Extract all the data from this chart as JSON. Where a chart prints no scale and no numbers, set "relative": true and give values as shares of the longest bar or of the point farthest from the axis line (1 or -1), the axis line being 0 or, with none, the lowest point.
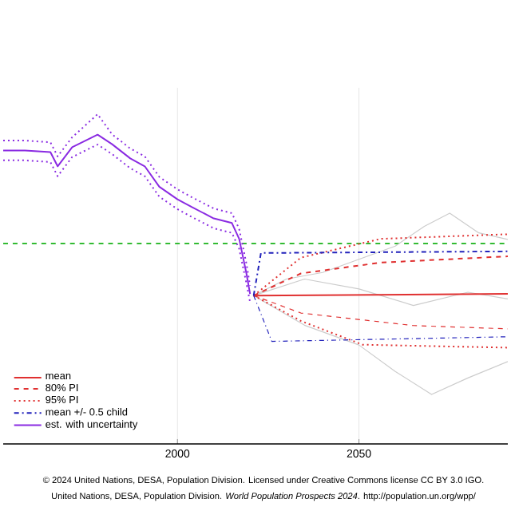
{
  "chart_data": {
    "type": "line",
    "relative": true,
    "x": [
      2021,
      2091
    ],
    "xlim": [
      1952,
      2091
    ],
    "xticks": [
      2000,
      2050
    ],
    "grid": "x",
    "legend": "bottom left",
    "marker": "none",
    "ref_lines": [
      {
        "axis": "y",
        "value": 0.608,
        "color": "#33bb33",
        "line_style": "dashed"
      }
    ],
    "series": [
      {
        "color": "#cccccc",
        "line_style": "solid",
        "x": [
          2021,
          2030,
          2040,
          2050,
          2060,
          2068,
          2075,
          2083,
          2091
        ],
        "values": [
          0.45,
          0.5,
          0.52,
          0.56,
          0.6,
          0.66,
          0.7,
          0.64,
          0.62
        ]
      },
      {
        "color": "#cccccc",
        "line_style": "solid",
        "x": [
          2021,
          2035,
          2050,
          2060,
          2070,
          2080,
          2091
        ],
        "values": [
          0.45,
          0.36,
          0.3,
          0.22,
          0.15,
          0.2,
          0.25
        ]
      },
      {
        "color": "#cccccc",
        "line_style": "solid",
        "x": [
          2021,
          2035,
          2050,
          2065,
          2080,
          2091
        ],
        "values": [
          0.45,
          0.5,
          0.47,
          0.42,
          0.46,
          0.44
        ]
      },
      {
        "name": "mean",
        "color": "#e03030",
        "line_style": "solid",
        "values": [
          0.45,
          0.455
        ]
      },
      {
        "name": "80% PI",
        "color": "#e03030",
        "line_style": "dashed",
        "x": [
          2021,
          2034,
          2056,
          2091
        ],
        "values": [
          0.45,
          0.517,
          0.55,
          0.569
        ]
      },
      {
        "color": "#e03030",
        "line_style": "dashed",
        "x": [
          2021,
          2034,
          2065,
          2091
        ],
        "values": [
          0.45,
          0.397,
          0.359,
          0.349
        ]
      },
      {
        "name": "95% PI",
        "color": "#e03030",
        "line_style": "dotted",
        "x": [
          2021,
          2034,
          2056,
          2091
        ],
        "values": [
          0.45,
          0.565,
          0.622,
          0.636
        ]
      },
      {
        "color": "#e03030",
        "line_style": "dotted",
        "x": [
          2021,
          2034,
          2051,
          2091
        ],
        "values": [
          0.45,
          0.373,
          0.301,
          0.292
        ]
      },
      {
        "name": "mean +/- 0.5 child",
        "color": "#2222bb",
        "line_style": "dashdot",
        "x": [
          2021,
          2023,
          2091
        ],
        "values": [
          0.45,
          0.579,
          0.584
        ]
      },
      {
        "color": "#2222bb",
        "line_style": "dashdot",
        "x": [
          2021,
          2026,
          2091
        ],
        "values": [
          0.45,
          0.311,
          0.325
        ]
      },
      {
        "name": "est. with uncertainty",
        "color": "#8a2be2",
        "line_style": "solid",
        "x": [
          1952,
          1958,
          1965,
          1967,
          1971,
          1978,
          1982,
          1987,
          1991,
          1995,
          2000,
          2004,
          2010,
          2015,
          2017,
          2019,
          2020
        ],
        "values": [
          0.89,
          0.89,
          0.885,
          0.842,
          0.9,
          0.938,
          0.909,
          0.866,
          0.842,
          0.78,
          0.742,
          0.718,
          0.684,
          0.67,
          0.622,
          0.517,
          0.455
        ]
      },
      {
        "color": "#8a2be2",
        "line_style": "dotted",
        "x": [
          1952,
          1958,
          1965,
          1967,
          1971,
          1978,
          1982,
          1987,
          1991,
          1995,
          2000,
          2004,
          2010,
          2015,
          2017,
          2019,
          2020
        ],
        "values": [
          0.86,
          0.86,
          0.855,
          0.812,
          0.87,
          0.908,
          0.879,
          0.836,
          0.812,
          0.75,
          0.712,
          0.688,
          0.654,
          0.64,
          0.592,
          0.487,
          0.43
        ]
      },
      {
        "color": "#8a2be2",
        "line_style": "dotted",
        "x": [
          1952,
          1958,
          1965,
          1967,
          1971,
          1978,
          1982,
          1987,
          1991,
          1995,
          2000,
          2004,
          2010,
          2015,
          2017,
          2019,
          2020
        ],
        "values": [
          0.92,
          0.92,
          0.915,
          0.872,
          0.93,
          1.0,
          0.939,
          0.896,
          0.872,
          0.81,
          0.772,
          0.748,
          0.714,
          0.7,
          0.652,
          0.547,
          0.48
        ]
      }
    ],
    "annotations": [
      "© 2024 United Nations, DESA, Population Division. Licensed under Creative Commons license CC BY 3.0 IGO.",
      "United Nations, DESA, Population Division. *World Population Prospects 2024*. http://population.un.org/wpp/"
    ]
  }
}
